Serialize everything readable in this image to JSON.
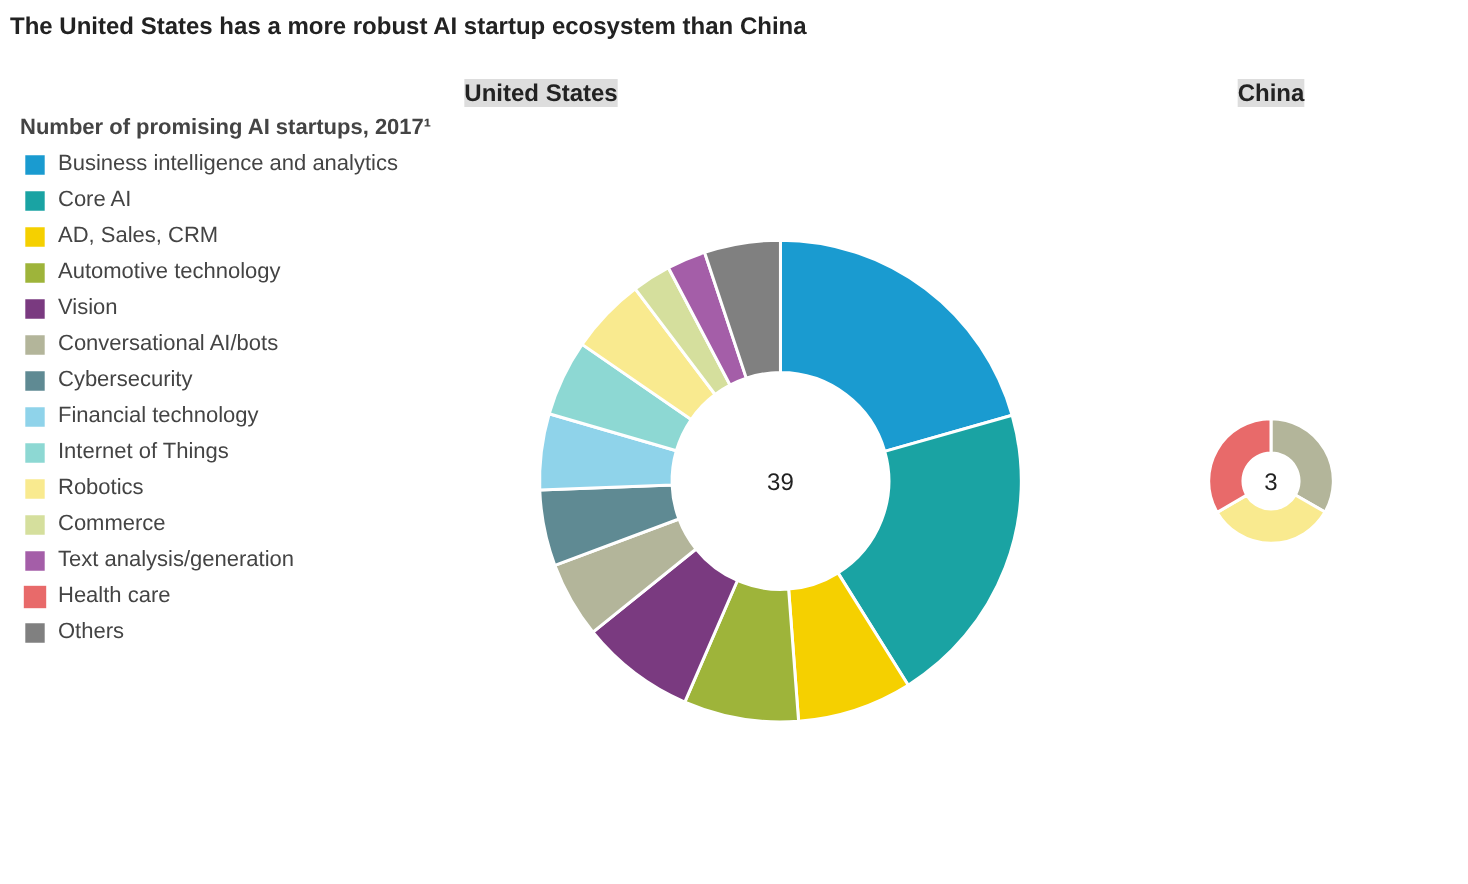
{
  "chart_data": [
    {
      "type": "donut",
      "title": "The United States has a more robust AI startup ecosystem than China",
      "subtitle": "United States",
      "legend_title": "Number of promising AI startups, 2017¹",
      "legend": "left",
      "categories": [
        "Business intelligence and analytics",
        "Core AI",
        "AD, Sales, CRM",
        "Automotive technology",
        "Vision",
        "Conversational AI/bots",
        "Cybersecurity",
        "Financial technology",
        "Internet of Things",
        "Robotics",
        "Commerce",
        "Text analysis/generation",
        "Health care",
        "Others"
      ],
      "values": [
        20.6,
        20.5,
        7.7,
        7.7,
        7.7,
        5.1,
        5.1,
        5.1,
        5.1,
        5.1,
        2.6,
        2.6,
        0,
        5.1
      ],
      "colors": [
        "#1a9bd0",
        "#1aa3a3",
        "#f5d000",
        "#9eb43a",
        "#7a3a80",
        "#b3b59a",
        "#5f8a93",
        "#8fd3ea",
        "#8dd8d3",
        "#f9ea8f",
        "#d5df9d",
        "#a45ea8",
        "#e86a6a",
        "#808080"
      ],
      "annotations": [
        "39"
      ]
    },
    {
      "type": "donut",
      "subtitle": "China",
      "categories": [
        null,
        null,
        null
      ],
      "values": [
        33.3,
        33.3,
        33.4
      ],
      "colors": [
        "#b3b59a",
        "#f9ea8f",
        "#e86a6a"
      ],
      "annotations": [
        "3"
      ]
    }
  ]
}
